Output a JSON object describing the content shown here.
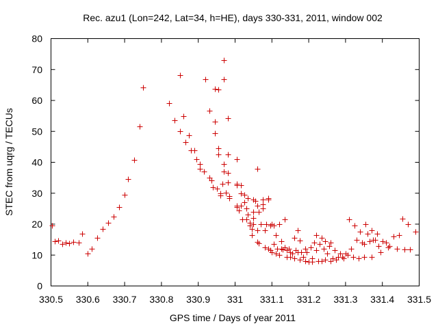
{
  "chart_data": {
    "type": "scatter",
    "title": "Rec. azu1 (Lon=242, Lat=34, h=HE), days 330-331, 2011, window 002",
    "xlabel": "GPS time / Days of year 2011",
    "ylabel": "STEC from uqrg / TECUs",
    "xlim": [
      330.5,
      331.5
    ],
    "ylim": [
      0,
      80
    ],
    "x_ticks": [
      330.5,
      330.6,
      330.7,
      330.8,
      330.9,
      331.0,
      331.1,
      331.2,
      331.3,
      331.4,
      331.5
    ],
    "x_tick_labels": [
      "330.5",
      "330.6",
      "330.7",
      "330.8",
      "330.9",
      "331",
      "331.1",
      "331.2",
      "331.3",
      "331.4",
      "331.5"
    ],
    "y_ticks": [
      0,
      10,
      20,
      30,
      40,
      50,
      60,
      70,
      80
    ],
    "y_tick_labels": [
      "0",
      "10",
      "20",
      "30",
      "40",
      "50",
      "60",
      "70",
      "80"
    ],
    "grid": false,
    "marker": "+",
    "color": "#cc0000",
    "series": [
      {
        "points": [
          [
            330.502,
            19.5
          ],
          [
            330.51,
            14.5
          ],
          [
            330.52,
            14.8
          ],
          [
            330.53,
            13.5
          ],
          [
            330.54,
            14.0
          ],
          [
            330.55,
            13.8
          ],
          [
            330.56,
            14.2
          ],
          [
            330.575,
            14.0
          ],
          [
            330.585,
            17.0
          ],
          [
            330.6,
            10.5
          ],
          [
            330.61,
            12.0
          ],
          [
            330.625,
            15.5
          ],
          [
            330.64,
            18.5
          ],
          [
            330.655,
            20.5
          ],
          [
            330.67,
            22.5
          ],
          [
            330.685,
            25.5
          ],
          [
            330.7,
            29.5
          ],
          [
            330.71,
            34.5
          ],
          [
            330.725,
            40.8
          ],
          [
            330.74,
            51.5
          ],
          [
            330.75,
            64.2
          ],
          [
            330.82,
            59.2
          ],
          [
            330.835,
            53.5
          ],
          [
            330.85,
            50.0
          ],
          [
            330.85,
            68.2
          ],
          [
            330.86,
            55.0
          ],
          [
            330.865,
            46.5
          ],
          [
            330.875,
            48.8
          ],
          [
            330.88,
            43.8
          ],
          [
            330.89,
            43.8
          ],
          [
            330.895,
            41.0
          ],
          [
            330.905,
            39.5
          ],
          [
            330.905,
            38.0
          ],
          [
            330.915,
            37.0
          ],
          [
            330.92,
            66.8
          ],
          [
            330.93,
            56.7
          ],
          [
            330.93,
            35.0
          ],
          [
            330.935,
            34.2
          ],
          [
            330.94,
            32.0
          ],
          [
            330.945,
            53.2
          ],
          [
            330.945,
            49.5
          ],
          [
            330.945,
            63.8
          ],
          [
            330.95,
            31.5
          ],
          [
            330.955,
            63.6
          ],
          [
            330.955,
            44.5
          ],
          [
            330.955,
            42.5
          ],
          [
            330.96,
            30.0
          ],
          [
            330.96,
            29.2
          ],
          [
            330.965,
            33.0
          ],
          [
            330.97,
            73.0
          ],
          [
            330.97,
            66.8
          ],
          [
            330.97,
            39.5
          ],
          [
            330.97,
            37.0
          ],
          [
            330.975,
            30.2
          ],
          [
            330.98,
            54.2
          ],
          [
            330.98,
            42.5
          ],
          [
            330.98,
            36.5
          ],
          [
            330.98,
            33.5
          ],
          [
            330.985,
            29.0
          ],
          [
            330.985,
            28.5
          ],
          [
            331.005,
            41.0
          ],
          [
            331.005,
            33.0
          ],
          [
            331.005,
            32.5
          ],
          [
            331.005,
            26.0
          ],
          [
            331.005,
            25.5
          ],
          [
            331.01,
            24.5
          ],
          [
            331.015,
            30.0
          ],
          [
            331.015,
            26.0
          ],
          [
            331.015,
            32.5
          ],
          [
            331.02,
            21.5
          ],
          [
            331.025,
            29.5
          ],
          [
            331.025,
            27.0
          ],
          [
            331.03,
            25.0
          ],
          [
            331.03,
            21.5
          ],
          [
            331.035,
            28.5
          ],
          [
            331.035,
            23.0
          ],
          [
            331.04,
            19.5
          ],
          [
            331.04,
            20.5
          ],
          [
            331.045,
            18.5
          ],
          [
            331.045,
            16.5
          ],
          [
            331.05,
            28.0
          ],
          [
            331.05,
            24.0
          ],
          [
            331.05,
            22.0
          ],
          [
            331.05,
            20.0
          ],
          [
            331.055,
            27.5
          ],
          [
            331.06,
            38.0
          ],
          [
            331.06,
            26.0
          ],
          [
            331.06,
            18.0
          ],
          [
            331.06,
            14.2
          ],
          [
            331.065,
            24.0
          ],
          [
            331.065,
            13.8
          ],
          [
            331.07,
            20.0
          ],
          [
            331.075,
            28.0
          ],
          [
            331.075,
            26.5
          ],
          [
            331.075,
            25.0
          ],
          [
            331.08,
            18.0
          ],
          [
            331.08,
            12.5
          ],
          [
            331.085,
            20.0
          ],
          [
            331.09,
            28.0
          ],
          [
            331.09,
            28.5
          ],
          [
            331.09,
            12.0
          ],
          [
            331.095,
            19.5
          ],
          [
            331.095,
            11.5
          ],
          [
            331.1,
            20.0
          ],
          [
            331.1,
            11.0
          ],
          [
            331.105,
            19.5
          ],
          [
            331.105,
            13.5
          ],
          [
            331.11,
            16.5
          ],
          [
            331.11,
            10.5
          ],
          [
            331.115,
            12.0
          ],
          [
            331.12,
            20.0
          ],
          [
            331.12,
            10.0
          ],
          [
            331.125,
            14.5
          ],
          [
            331.125,
            12.0
          ],
          [
            331.13,
            11.8
          ],
          [
            331.135,
            21.5
          ],
          [
            331.135,
            12.5
          ],
          [
            331.14,
            11.5
          ],
          [
            331.14,
            9.5
          ],
          [
            331.145,
            12.0
          ],
          [
            331.15,
            11.0
          ],
          [
            331.15,
            9.5
          ],
          [
            331.155,
            10.5
          ],
          [
            331.16,
            15.5
          ],
          [
            331.16,
            9.0
          ],
          [
            331.165,
            11.5
          ],
          [
            331.17,
            18.0
          ],
          [
            331.17,
            11.0
          ],
          [
            331.175,
            14.8
          ],
          [
            331.175,
            8.5
          ],
          [
            331.18,
            11.0
          ],
          [
            331.185,
            9.5
          ],
          [
            331.19,
            12.0
          ],
          [
            331.19,
            8.0
          ],
          [
            331.195,
            11.0
          ],
          [
            331.2,
            7.8
          ],
          [
            331.205,
            12.5
          ],
          [
            331.21,
            9.0
          ],
          [
            331.21,
            7.8
          ],
          [
            331.215,
            14.0
          ],
          [
            331.22,
            16.5
          ],
          [
            331.22,
            11.5
          ],
          [
            331.225,
            8.0
          ],
          [
            331.23,
            13.5
          ],
          [
            331.235,
            15.5
          ],
          [
            331.235,
            8.0
          ],
          [
            331.24,
            12.0
          ],
          [
            331.245,
            14.5
          ],
          [
            331.245,
            8.5
          ],
          [
            331.25,
            10.5
          ],
          [
            331.255,
            13.0
          ],
          [
            331.26,
            14.0
          ],
          [
            331.26,
            8.0
          ],
          [
            331.265,
            9.0
          ],
          [
            331.27,
            11.5
          ],
          [
            331.275,
            8.5
          ],
          [
            331.28,
            9.5
          ],
          [
            331.285,
            10.5
          ],
          [
            331.29,
            9.5
          ],
          [
            331.295,
            9.0
          ],
          [
            331.3,
            10.5
          ],
          [
            331.305,
            10.0
          ],
          [
            331.31,
            21.5
          ],
          [
            331.315,
            12.0
          ],
          [
            331.32,
            9.5
          ],
          [
            331.325,
            19.5
          ],
          [
            331.33,
            15.0
          ],
          [
            331.335,
            9.0
          ],
          [
            331.34,
            17.5
          ],
          [
            331.345,
            14.0
          ],
          [
            331.35,
            13.5
          ],
          [
            331.35,
            9.5
          ],
          [
            331.355,
            20.0
          ],
          [
            331.36,
            17.0
          ],
          [
            331.365,
            14.5
          ],
          [
            331.37,
            18.0
          ],
          [
            331.37,
            9.5
          ],
          [
            331.375,
            15.0
          ],
          [
            331.38,
            15.0
          ],
          [
            331.385,
            17.0
          ],
          [
            331.39,
            13.0
          ],
          [
            331.395,
            11.0
          ],
          [
            331.4,
            14.5
          ],
          [
            331.41,
            14.0
          ],
          [
            331.415,
            12.5
          ],
          [
            331.42,
            13.0
          ],
          [
            331.43,
            16.0
          ],
          [
            331.44,
            12.0
          ],
          [
            331.445,
            16.5
          ],
          [
            331.455,
            21.8
          ],
          [
            331.46,
            11.8
          ],
          [
            331.47,
            20.0
          ],
          [
            331.475,
            11.8
          ],
          [
            331.49,
            17.5
          ]
        ]
      }
    ]
  }
}
